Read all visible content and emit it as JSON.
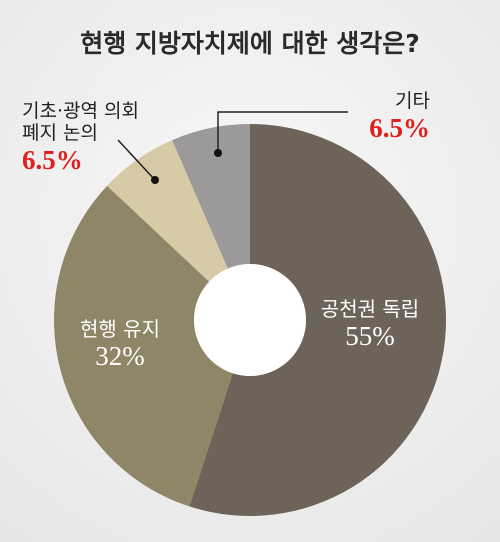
{
  "chart_data": {
    "type": "pie",
    "title": "현행 지방자치제에 대한 생각은?",
    "categories": [
      "공천권 독립",
      "현행 유지",
      "기초·광역 의회 폐지 논의",
      "기타"
    ],
    "values": [
      55,
      32,
      6.5,
      6.5
    ],
    "value_labels": [
      "55%",
      "32%",
      "6.5%",
      "6.5%"
    ],
    "colors": [
      "#6e6358",
      "#8f8667",
      "#d7caa6",
      "#9b9999"
    ]
  }
}
